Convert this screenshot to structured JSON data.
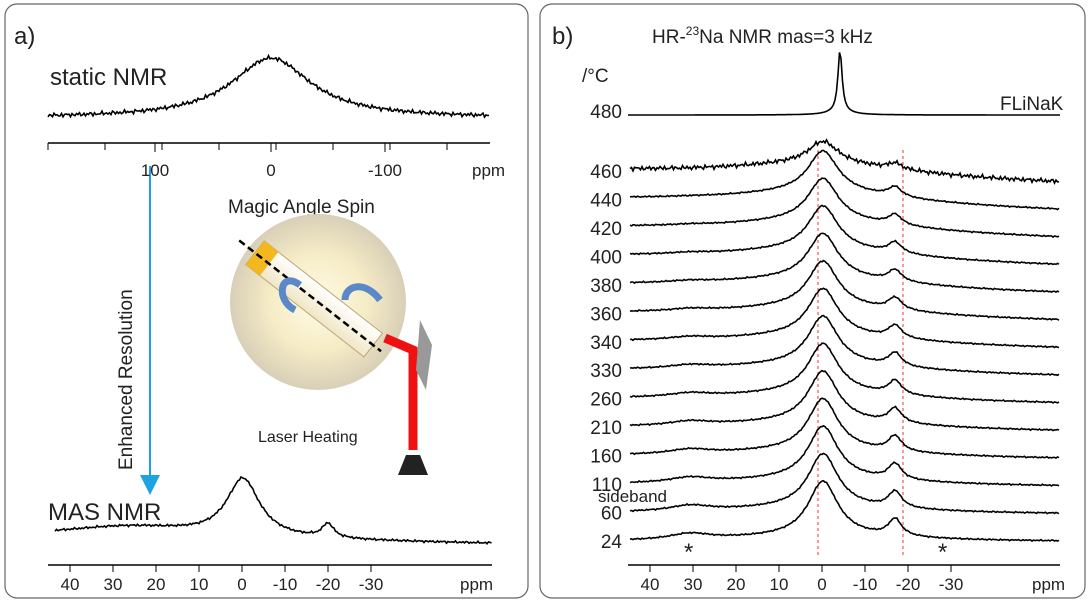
{
  "panel_a": {
    "label": "a)",
    "static_label": "static NMR",
    "top_ticks": [
      "100",
      "0",
      "-100"
    ],
    "top_unit": "ppm",
    "arrow_label": "Enhanced Resolution",
    "spin_label": "Magic Angle Spin",
    "laser_label": "Laser Heating",
    "mas_label": "MAS NMR",
    "bottom_ticks": [
      "40",
      "30",
      "20",
      "10",
      "0",
      "-10",
      "-20",
      "-30"
    ],
    "bottom_unit": "ppm"
  },
  "panel_b": {
    "label": "b)",
    "title_prefix": "HR-",
    "title_sup": "23",
    "title_rest": "Na NMR mas=3 kHz",
    "temp_unit": "/°C",
    "top_temp": "480",
    "top_sample": "FLiNaK",
    "temps": [
      "460",
      "440",
      "420",
      "400",
      "380",
      "360",
      "340",
      "330",
      "260",
      "210",
      "160",
      "110",
      "60",
      "24"
    ],
    "sideband_label": "sideband",
    "star": "*",
    "ticks": [
      "40",
      "30",
      "20",
      "10",
      "0",
      "-10",
      "-20",
      "-30"
    ],
    "unit": "ppm"
  }
}
